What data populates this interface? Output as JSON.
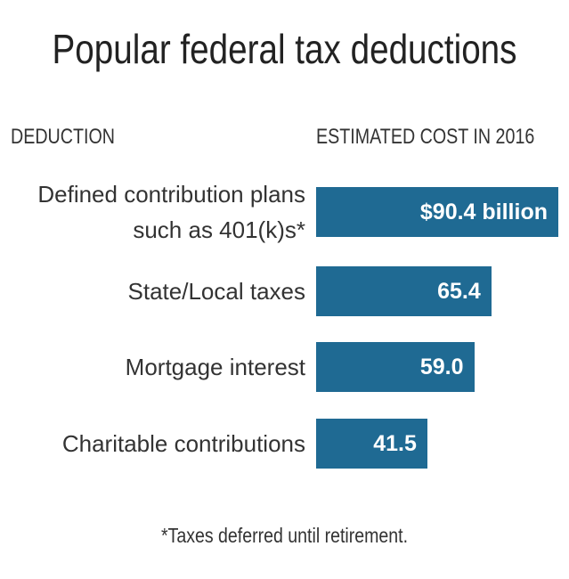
{
  "chart_data": {
    "type": "bar",
    "orientation": "horizontal",
    "title": "Popular federal tax deductions",
    "category_header": "DEDUCTION",
    "value_header": "ESTIMATED COST IN 2016",
    "categories": [
      "Defined contribution plans such as 401(k)s*",
      "State/Local taxes",
      "Mortgage interest",
      "Charitable contributions"
    ],
    "values": [
      90.4,
      65.4,
      59.0,
      41.5
    ],
    "value_labels": [
      "$90.4 billion",
      "65.4",
      "59.0",
      "41.5"
    ],
    "color": "#1f6a93",
    "footnote": "*Taxes deferred until retirement."
  }
}
